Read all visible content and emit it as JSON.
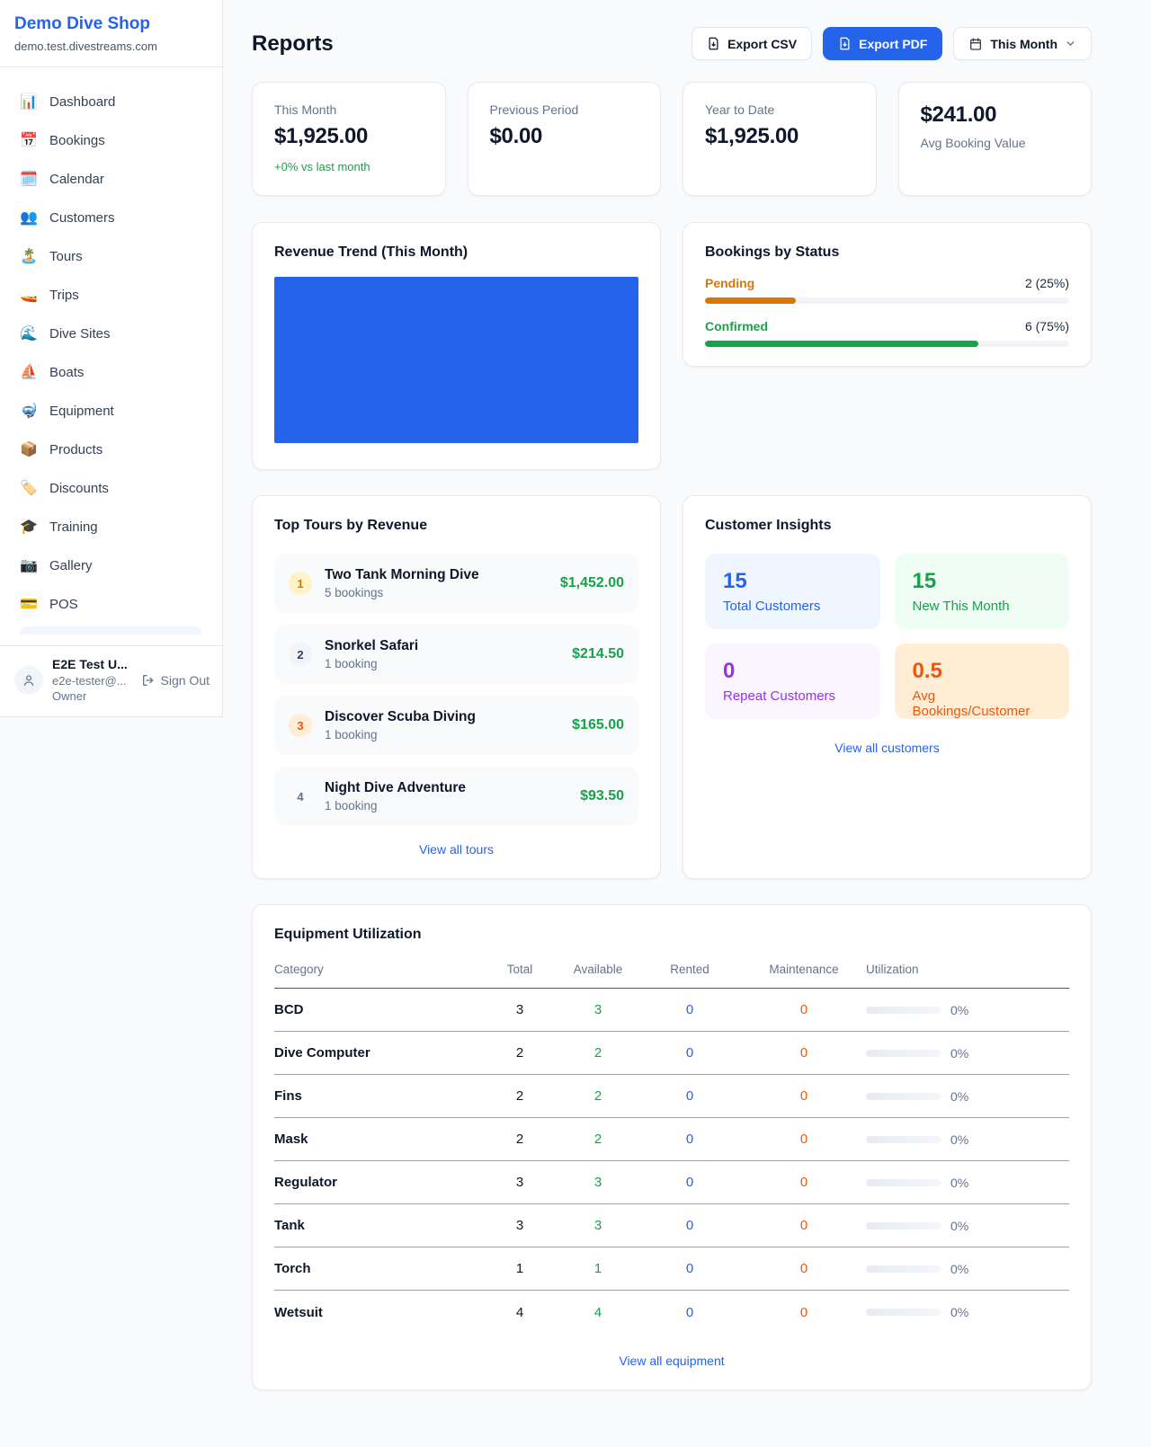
{
  "sidebar": {
    "shop_name": "Demo Dive Shop",
    "domain": "demo.test.divestreams.com",
    "items": [
      {
        "icon": "📊",
        "label": "Dashboard"
      },
      {
        "icon": "📅",
        "label": "Bookings"
      },
      {
        "icon": "🗓️",
        "label": "Calendar"
      },
      {
        "icon": "👥",
        "label": "Customers"
      },
      {
        "icon": "🏝️",
        "label": "Tours"
      },
      {
        "icon": "🚤",
        "label": "Trips"
      },
      {
        "icon": "🌊",
        "label": "Dive Sites"
      },
      {
        "icon": "⛵",
        "label": "Boats"
      },
      {
        "icon": "🤿",
        "label": "Equipment"
      },
      {
        "icon": "📦",
        "label": "Products"
      },
      {
        "icon": "🏷️",
        "label": "Discounts"
      },
      {
        "icon": "🎓",
        "label": "Training"
      },
      {
        "icon": "📷",
        "label": "Gallery"
      },
      {
        "icon": "💳",
        "label": "POS"
      }
    ],
    "user": {
      "name": "E2E Test U...",
      "email": "e2e-tester@...",
      "role": "Owner",
      "sign_out_label": "Sign Out"
    }
  },
  "header": {
    "title": "Reports",
    "export_csv_label": "Export CSV",
    "export_pdf_label": "Export PDF",
    "period_label": "This Month"
  },
  "stats": [
    {
      "label": "This Month",
      "value": "$1,925.00",
      "change": "+0% vs last month"
    },
    {
      "label": "Previous Period",
      "value": "$0.00"
    },
    {
      "label": "Year to Date",
      "value": "$1,925.00"
    },
    {
      "label": "Avg Booking Value",
      "value": "$241.00"
    }
  ],
  "revenue_trend": {
    "title": "Revenue Trend (This Month)",
    "bar_color": "#2563eb",
    "bar_fill_percent": 100
  },
  "bookings_by_status": {
    "title": "Bookings by Status",
    "rows": [
      {
        "label": "Pending",
        "value": "2 (25%)",
        "percent": 25,
        "color": "#d97706"
      },
      {
        "label": "Confirmed",
        "value": "6 (75%)",
        "percent": 75,
        "color": "#16a34a"
      }
    ]
  },
  "top_tours": {
    "title": "Top Tours by Revenue",
    "view_all_label": "View all tours",
    "items": [
      {
        "rank": "1",
        "name": "Two Tank Morning Dive",
        "bookings": "5 bookings",
        "revenue": "$1,452.00",
        "badge_bg": "#fef3c7",
        "badge_color": "#d97706"
      },
      {
        "rank": "2",
        "name": "Snorkel Safari",
        "bookings": "1 booking",
        "revenue": "$214.50",
        "badge_bg": "#f1f5f9",
        "badge_color": "#334155"
      },
      {
        "rank": "3",
        "name": "Discover Scuba Diving",
        "bookings": "1 booking",
        "revenue": "$165.00",
        "badge_bg": "#ffedd5",
        "badge_color": "#ea580c"
      },
      {
        "rank": "4",
        "name": "Night Dive Adventure",
        "bookings": "1 booking",
        "revenue": "$93.50",
        "badge_bg": "transparent",
        "badge_color": "#64748b"
      }
    ]
  },
  "customer_insights": {
    "title": "Customer Insights",
    "view_all_label": "View all customers",
    "tiles": [
      {
        "value": "15",
        "label": "Total Customers",
        "bg": "#eff6ff",
        "color": "#2563eb"
      },
      {
        "value": "15",
        "label": "New This Month",
        "bg": "#f0fdf4",
        "color": "#16a34a"
      },
      {
        "value": "0",
        "label": "Repeat Customers",
        "bg": "#faf5ff",
        "color": "#9333ea"
      },
      {
        "value": "0.5",
        "label": "Avg Bookings/Customer",
        "bg": "#ffedd5",
        "color": "#ea580c"
      }
    ]
  },
  "equipment": {
    "title": "Equipment Utilization",
    "view_all_label": "View all equipment",
    "columns": [
      "Category",
      "Total",
      "Available",
      "Rented",
      "Maintenance",
      "Utilization"
    ],
    "rows": [
      {
        "category": "BCD",
        "total": "3",
        "available": "3",
        "rented": "0",
        "maintenance": "0",
        "utilization": "0%",
        "utilization_percent": 0
      },
      {
        "category": "Dive Computer",
        "total": "2",
        "available": "2",
        "rented": "0",
        "maintenance": "0",
        "utilization": "0%",
        "utilization_percent": 0
      },
      {
        "category": "Fins",
        "total": "2",
        "available": "2",
        "rented": "0",
        "maintenance": "0",
        "utilization": "0%",
        "utilization_percent": 0
      },
      {
        "category": "Mask",
        "total": "2",
        "available": "2",
        "rented": "0",
        "maintenance": "0",
        "utilization": "0%",
        "utilization_percent": 0
      },
      {
        "category": "Regulator",
        "total": "3",
        "available": "3",
        "rented": "0",
        "maintenance": "0",
        "utilization": "0%",
        "utilization_percent": 0
      },
      {
        "category": "Tank",
        "total": "3",
        "available": "3",
        "rented": "0",
        "maintenance": "0",
        "utilization": "0%",
        "utilization_percent": 0
      },
      {
        "category": "Torch",
        "total": "1",
        "available": "1",
        "rented": "0",
        "maintenance": "0",
        "utilization": "0%",
        "utilization_percent": 0
      },
      {
        "category": "Wetsuit",
        "total": "4",
        "available": "4",
        "rented": "0",
        "maintenance": "0",
        "utilization": "0%",
        "utilization_percent": 0
      }
    ]
  }
}
